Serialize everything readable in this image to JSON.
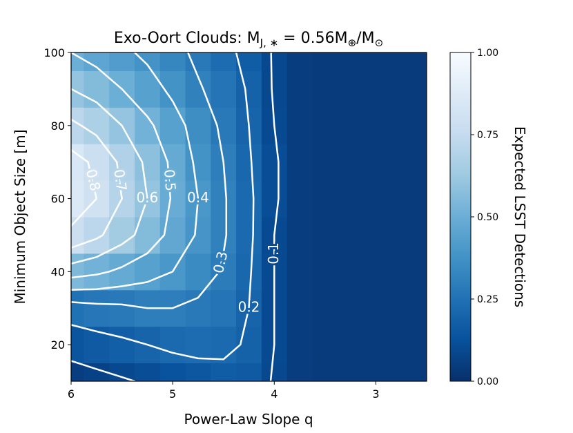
{
  "chart_data": {
    "type": "contour",
    "title": [
      {
        "text": "Exo-Oort Clouds: M"
      },
      {
        "text": "J, ∗",
        "sub": true
      },
      {
        "text": " = 0.56M"
      },
      {
        "text": "⊕",
        "sub": true
      },
      {
        "text": "/M"
      },
      {
        "text": "⊙",
        "sub": true
      }
    ],
    "x_label": "Power-Law Slope q",
    "y_label": "Minimum Object Size [m]",
    "colorbar_label": "Expected LSST Detections",
    "x": [
      6,
      5.75,
      5.5,
      5.25,
      5,
      4.75,
      4.5,
      4.25,
      4,
      3.75,
      3.5,
      3.25,
      3,
      2.75,
      2.5
    ],
    "y": [
      10,
      20,
      30,
      40,
      50,
      60,
      70,
      80,
      90,
      100
    ],
    "z": [
      [
        0.05,
        0.07,
        0.09,
        0.11,
        0.13,
        0.15,
        0.17,
        0.16,
        0.09,
        0.05,
        0.04,
        0.04,
        0.04,
        0.04,
        0.04
      ],
      [
        0.14,
        0.16,
        0.18,
        0.2,
        0.22,
        0.23,
        0.22,
        0.19,
        0.1,
        0.05,
        0.04,
        0.04,
        0.04,
        0.04,
        0.04
      ],
      [
        0.25,
        0.27,
        0.28,
        0.3,
        0.3,
        0.28,
        0.26,
        0.2,
        0.1,
        0.05,
        0.04,
        0.04,
        0.04,
        0.04,
        0.04
      ],
      [
        0.55,
        0.52,
        0.48,
        0.44,
        0.4,
        0.35,
        0.29,
        0.21,
        0.1,
        0.05,
        0.04,
        0.04,
        0.04,
        0.04,
        0.04
      ],
      [
        0.78,
        0.72,
        0.64,
        0.56,
        0.47,
        0.39,
        0.31,
        0.22,
        0.1,
        0.05,
        0.04,
        0.04,
        0.04,
        0.04,
        0.04
      ],
      [
        0.86,
        0.8,
        0.7,
        0.6,
        0.49,
        0.4,
        0.31,
        0.22,
        0.11,
        0.05,
        0.04,
        0.04,
        0.04,
        0.04,
        0.04
      ],
      [
        0.84,
        0.78,
        0.68,
        0.58,
        0.48,
        0.38,
        0.3,
        0.21,
        0.11,
        0.05,
        0.04,
        0.04,
        0.04,
        0.04,
        0.04
      ],
      [
        0.72,
        0.67,
        0.6,
        0.52,
        0.44,
        0.36,
        0.28,
        0.2,
        0.1,
        0.05,
        0.04,
        0.04,
        0.04,
        0.04,
        0.04
      ],
      [
        0.6,
        0.56,
        0.5,
        0.44,
        0.38,
        0.31,
        0.26,
        0.19,
        0.09,
        0.05,
        0.04,
        0.04,
        0.04,
        0.04,
        0.04
      ],
      [
        0.5,
        0.46,
        0.42,
        0.38,
        0.33,
        0.28,
        0.23,
        0.17,
        0.09,
        0.05,
        0.04,
        0.04,
        0.04,
        0.04,
        0.04
      ]
    ],
    "contour_levels": [
      0.1,
      0.2,
      0.3,
      0.4,
      0.5,
      0.6,
      0.7,
      0.8
    ],
    "contour_color": "#ffffff",
    "colormap": [
      "#08306b",
      "#08519c",
      "#2171b5",
      "#4292c6",
      "#6baed6",
      "#9ecae1",
      "#c6dbef",
      "#deebf7",
      "#f7fbff"
    ],
    "xlim": [
      6,
      2.5
    ],
    "ylim": [
      10,
      100
    ],
    "clim": [
      0,
      1
    ],
    "xticks": [
      6,
      5,
      4,
      3
    ],
    "yticks": [
      20,
      40,
      60,
      80,
      100
    ],
    "cticks": [
      {
        "value": 0,
        "label": "0.00"
      },
      {
        "value": 0.25,
        "label": "0.25"
      },
      {
        "value": 0.5,
        "label": "0.50"
      },
      {
        "value": 0.75,
        "label": "0.75"
      },
      {
        "value": 1,
        "label": "1.00"
      }
    ]
  }
}
